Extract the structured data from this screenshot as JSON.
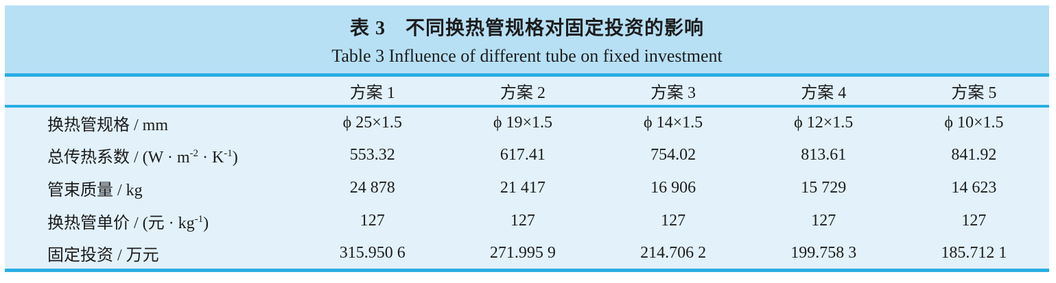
{
  "caption": {
    "zh": "表 3　不同换热管规格对固定投资的影响",
    "en": "Table 3  Influence of different tube on fixed investment"
  },
  "colors": {
    "caption_band": "#b7e0f5",
    "table_background": "#e2f1fa",
    "rule": "#29aee3",
    "text": "#1c1c1c"
  },
  "table": {
    "header": [
      "",
      "方案 1",
      "方案 2",
      "方案 3",
      "方案 4",
      "方案 5"
    ],
    "rows": [
      {
        "label": "换热管规格 / mm",
        "values": [
          "ϕ 25×1.5",
          "ϕ 19×1.5",
          "ϕ 14×1.5",
          "ϕ 12×1.5",
          "ϕ 10×1.5"
        ]
      },
      {
        "label": "总传热系数 / (W · m^{-2} · K^{-1})",
        "values": [
          "553.32",
          "617.41",
          "754.02",
          "813.61",
          "841.92"
        ]
      },
      {
        "label": "管束质量 / kg",
        "values": [
          "24 878",
          "21 417",
          "16 906",
          "15 729",
          "14 623"
        ]
      },
      {
        "label": "换热管单价 / (元 · kg^{-1})",
        "values": [
          "127",
          "127",
          "127",
          "127",
          "127"
        ]
      },
      {
        "label": "固定投资 / 万元",
        "values": [
          "315.950 6",
          "271.995 9",
          "214.706 2",
          "199.758 3",
          "185.712 1"
        ]
      }
    ]
  }
}
